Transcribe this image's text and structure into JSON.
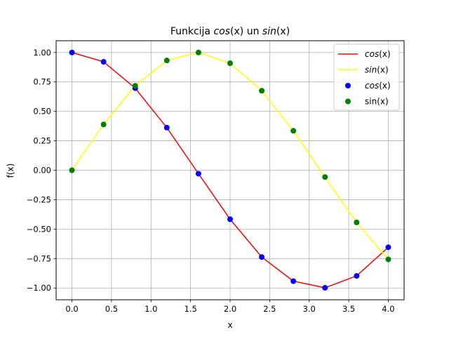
{
  "chart_data": {
    "type": "line",
    "title": {
      "prefix": "Funkcija ",
      "f1": "cos",
      "arg1": "(x)",
      "mid": " un ",
      "f2": "sin",
      "arg2": "(x)"
    },
    "xlabel": "x",
    "ylabel": "f(x)",
    "xlim": [
      -0.2,
      4.2
    ],
    "ylim": [
      -1.1,
      1.1
    ],
    "xticks": [
      0.0,
      0.5,
      1.0,
      1.5,
      2.0,
      2.5,
      3.0,
      3.5,
      4.0
    ],
    "xtick_labels": [
      "0.0",
      "0.5",
      "1.0",
      "1.5",
      "2.0",
      "2.5",
      "3.0",
      "3.5",
      "4.0"
    ],
    "yticks": [
      1.0,
      0.75,
      0.5,
      0.25,
      0.0,
      -0.25,
      -0.5,
      -0.75,
      -1.0
    ],
    "ytick_labels": [
      "1.00",
      "0.75",
      "0.50",
      "0.25",
      "0.00",
      "−0.25",
      "−0.50",
      "−0.75",
      "−1.00"
    ],
    "grid": true,
    "legend_position": "top-right",
    "x": [
      0.0,
      0.4,
      0.8,
      1.2,
      1.6,
      2.0,
      2.4,
      2.8,
      3.2,
      3.6,
      4.0
    ],
    "series": [
      {
        "kind": "line",
        "color": "#ff0000",
        "legend_func": "cos",
        "legend_arg": "(x)",
        "legend_italic": true,
        "values": [
          1.0,
          0.921,
          0.697,
          0.362,
          -0.029,
          -0.416,
          -0.737,
          -0.942,
          -0.998,
          -0.897,
          -0.654
        ]
      },
      {
        "kind": "line",
        "color": "#ffff00",
        "legend_func": "sin",
        "legend_arg": "(x)",
        "legend_italic": true,
        "values": [
          0.0,
          0.389,
          0.717,
          0.932,
          1.0,
          0.909,
          0.675,
          0.335,
          -0.058,
          -0.443,
          -0.757
        ]
      },
      {
        "kind": "markers",
        "color": "#0000ff",
        "legend_func": "cos",
        "legend_arg": "(x)",
        "legend_italic": true,
        "values": [
          1.0,
          0.921,
          0.697,
          0.362,
          -0.029,
          -0.416,
          -0.737,
          -0.942,
          -0.998,
          -0.897,
          -0.654
        ]
      },
      {
        "kind": "markers",
        "color": "#008000",
        "legend_func": "sin",
        "legend_arg": "(x)",
        "legend_italic": false,
        "values": [
          0.0,
          0.389,
          0.717,
          0.932,
          1.0,
          0.909,
          0.675,
          0.335,
          -0.058,
          -0.443,
          -0.757
        ]
      }
    ]
  }
}
